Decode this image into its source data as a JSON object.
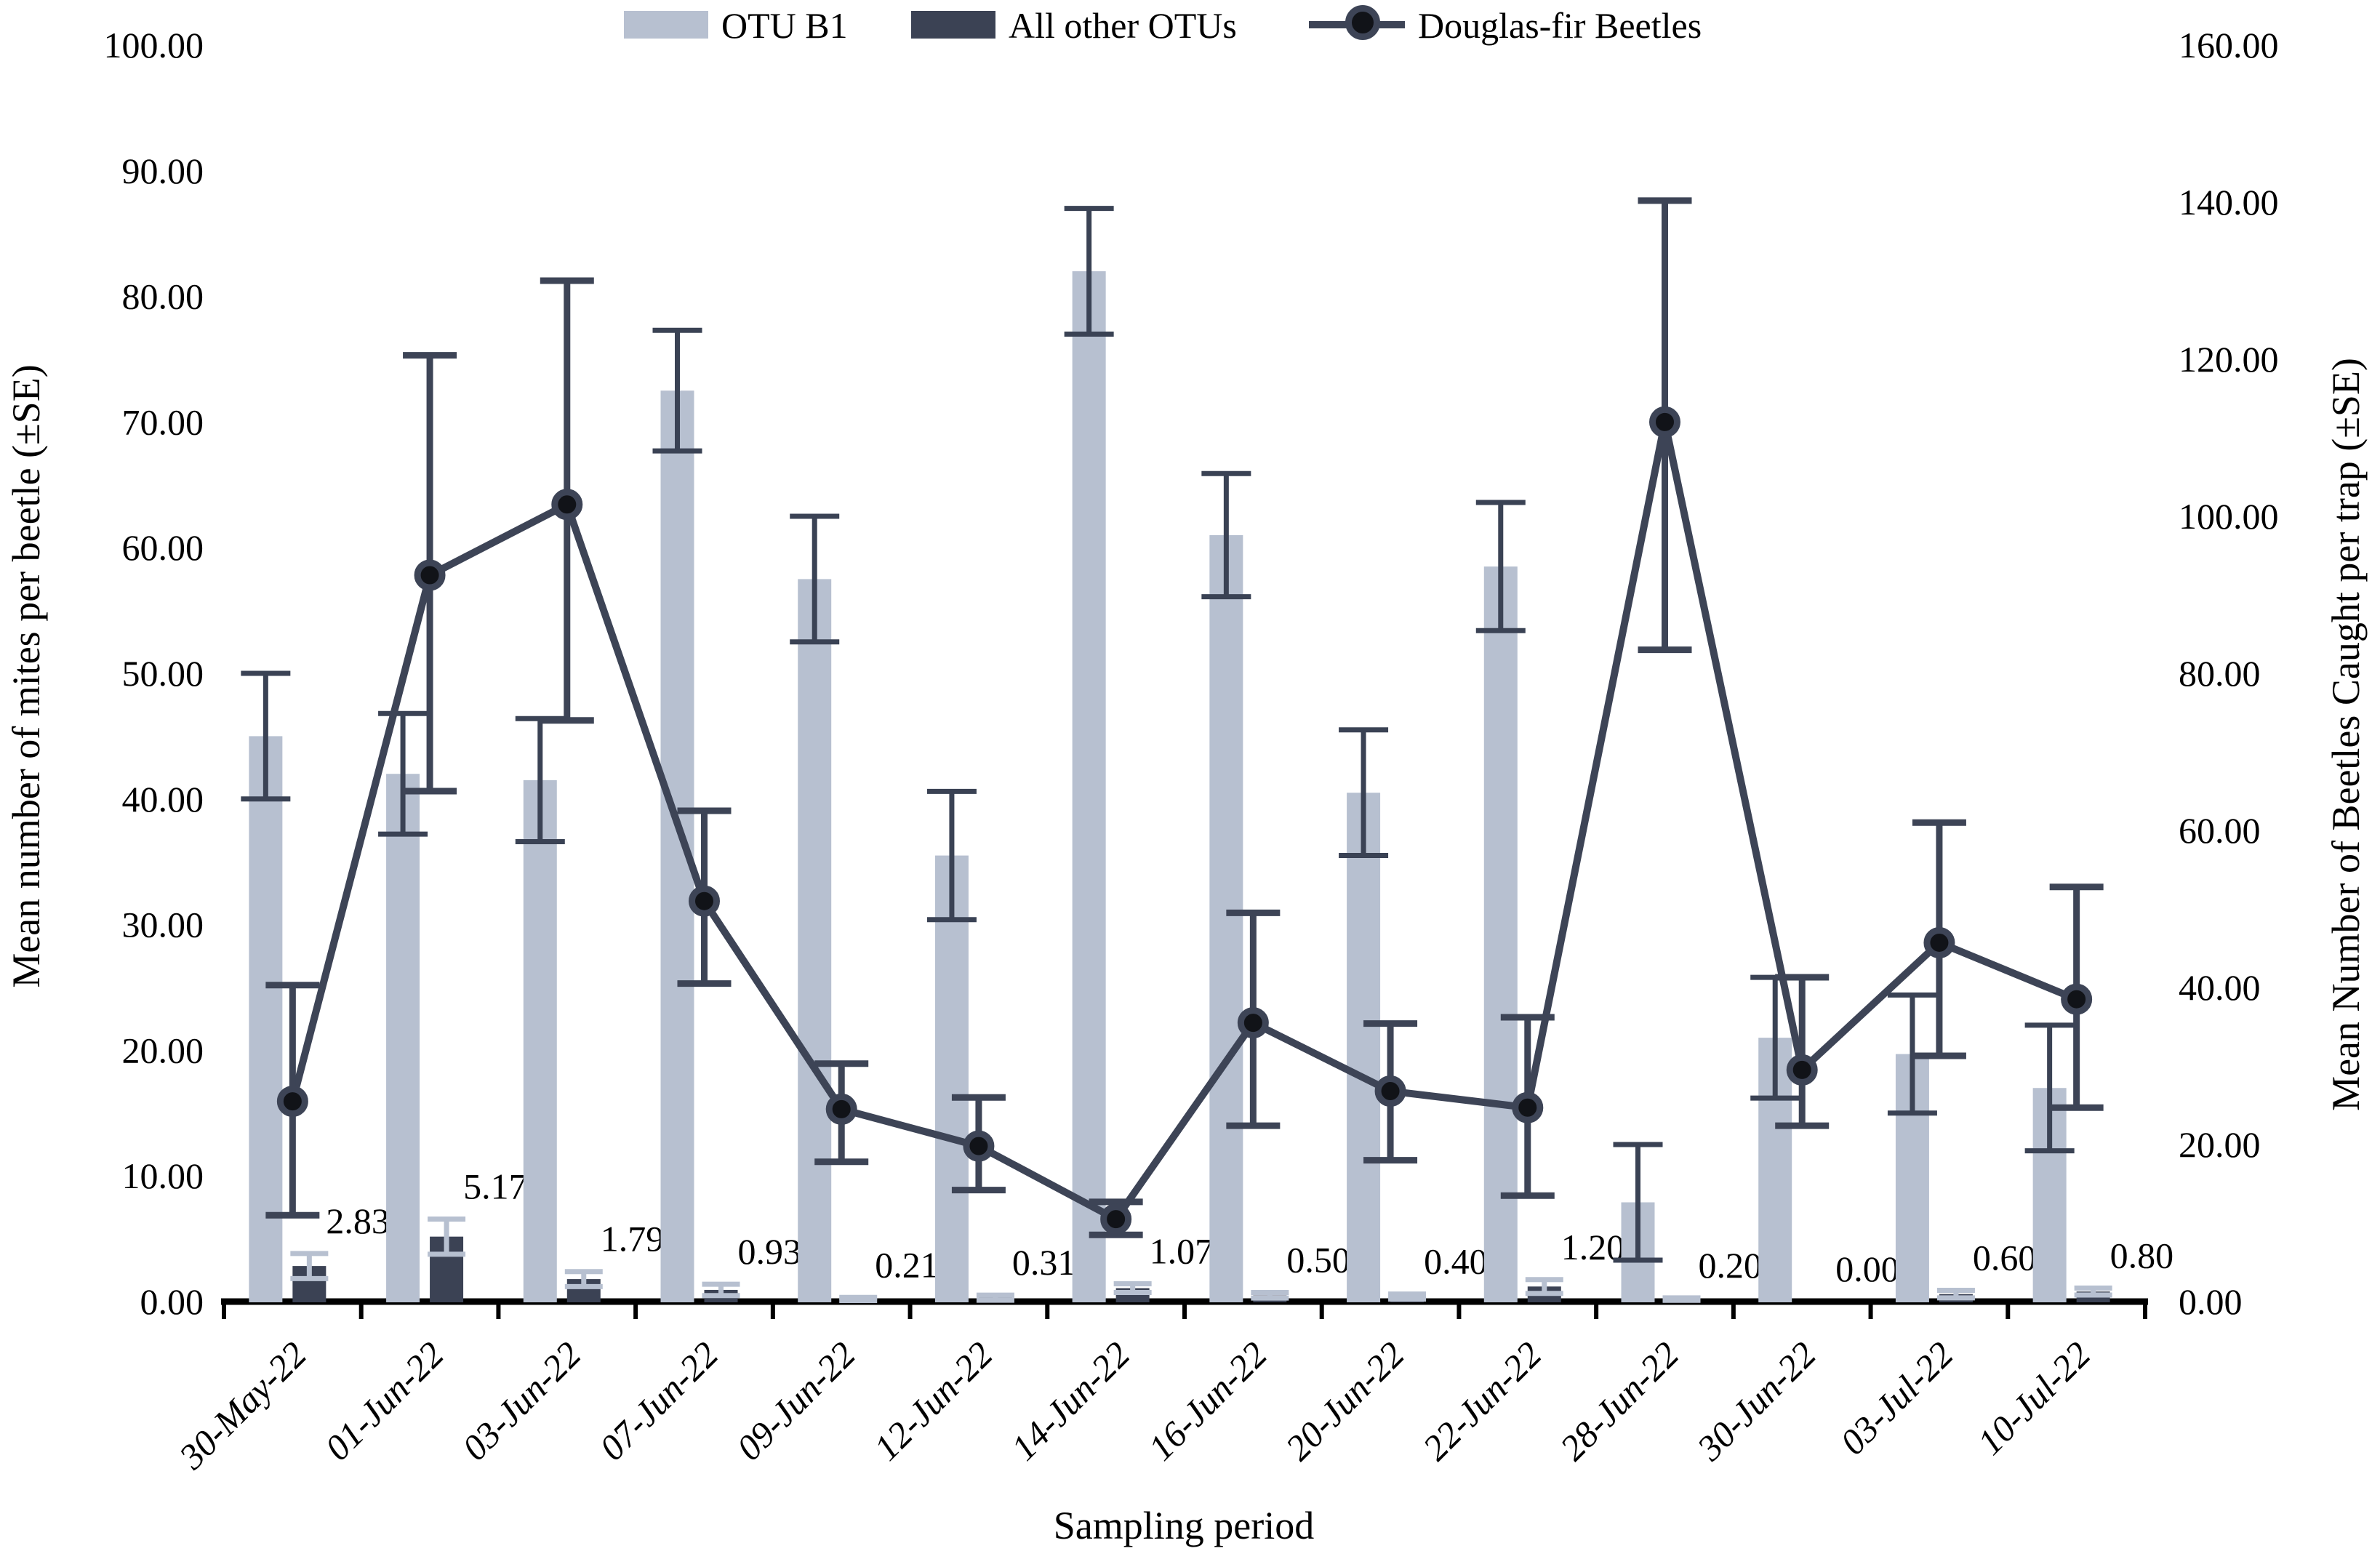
{
  "figure_background": "#ffffff",
  "legend": {
    "items": [
      {
        "label": "OTU B1",
        "icon": "bar-swatch"
      },
      {
        "label": "All other OTUs",
        "icon": "bar-swatch"
      },
      {
        "label": "Douglas-fir Beetles",
        "icon": "line-marker"
      }
    ]
  },
  "chart_data": {
    "type": "bar",
    "subtype": "combo-bar-line-dual-axis",
    "categories": [
      "30-May-22",
      "01-Jun-22",
      "03-Jun-22",
      "07-Jun-22",
      "09-Jun-22",
      "12-Jun-22",
      "14-Jun-22",
      "16-Jun-22",
      "20-Jun-22",
      "22-Jun-22",
      "28-Jun-22",
      "30-Jun-22",
      "03-Jul-22",
      "10-Jul-22"
    ],
    "series": [
      {
        "name": "OTU B1",
        "type": "bar",
        "axis": "left",
        "color": "#b7c0d0",
        "error_color": "#3a4254",
        "values": [
          45.0,
          42.0,
          41.5,
          72.5,
          57.5,
          35.5,
          82.0,
          61.0,
          40.5,
          58.5,
          7.9,
          21.0,
          19.7,
          17.0
        ],
        "se": [
          5.0,
          4.8,
          4.9,
          4.8,
          5.0,
          5.1,
          5.0,
          4.9,
          5.0,
          5.1,
          4.6,
          4.8,
          4.7,
          5.0
        ]
      },
      {
        "name": "All other OTUs",
        "type": "bar",
        "axis": "left",
        "color": "#3b4254",
        "error_color": "#b7c0d0",
        "values": [
          2.83,
          5.17,
          1.79,
          0.93,
          0.21,
          0.31,
          1.07,
          0.5,
          0.4,
          1.2,
          0.2,
          0.0,
          0.6,
          0.8
        ],
        "se": [
          1.0,
          1.4,
          0.6,
          0.45,
          0.12,
          0.2,
          0.35,
          0.22,
          0.2,
          0.55,
          0.1,
          0.0,
          0.3,
          0.28
        ],
        "data_labels": [
          "2.83",
          "5.17",
          "1.79",
          "0.93",
          "0.21",
          "0.31",
          "1.07",
          "0.50",
          "0.40",
          "1.20",
          "0.20",
          "0.00",
          "0.60",
          "0.80"
        ]
      },
      {
        "name": "Douglas-fir Beetles",
        "type": "line",
        "axis": "right",
        "color": "#3d4456",
        "marker_fill": "#111318",
        "values": [
          25.5,
          92.5,
          101.5,
          51.0,
          24.5,
          19.8,
          10.5,
          35.5,
          26.8,
          24.7,
          112.0,
          29.5,
          45.7,
          38.5
        ],
        "err_lo": [
          11.0,
          65.0,
          74.0,
          40.5,
          17.8,
          14.2,
          8.5,
          22.4,
          18.0,
          13.5,
          83.0,
          22.4,
          31.3,
          24.7
        ],
        "err_hi": [
          40.3,
          120.5,
          130.0,
          62.5,
          30.3,
          26.0,
          12.7,
          49.5,
          35.4,
          36.2,
          140.2,
          41.3,
          61.0,
          52.8
        ]
      }
    ],
    "left_axis": {
      "label": "Mean number of mites per beetle (±SE)",
      "min": 0,
      "max": 100,
      "step": 10,
      "ticks": [
        "0.00",
        "10.00",
        "20.00",
        "30.00",
        "40.00",
        "50.00",
        "60.00",
        "70.00",
        "80.00",
        "90.00",
        "100.00"
      ]
    },
    "right_axis": {
      "label": "Mean Number of Beetles Caught per trap (±SE)",
      "min": 0,
      "max": 160,
      "step": 20,
      "ticks": [
        "0.00",
        "20.00",
        "40.00",
        "60.00",
        "80.00",
        "100.00",
        "120.00",
        "140.00",
        "160.00"
      ]
    },
    "x_axis": {
      "label": "Sampling period",
      "tick_style": "italic, rotated 45°"
    },
    "grid": "off",
    "legend_position": "top-center"
  }
}
